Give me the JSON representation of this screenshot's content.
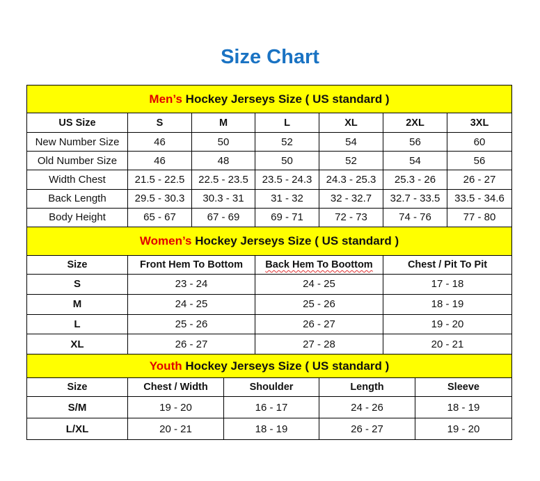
{
  "title": "Size Chart",
  "men": {
    "label_prefix": "Men’s",
    "label_rest": " Hockey Jerseys Size ( US standard )",
    "headers": [
      "US Size",
      "S",
      "M",
      "L",
      "XL",
      "2XL",
      "3XL"
    ],
    "rows": [
      [
        "New Number Size",
        "46",
        "50",
        "52",
        "54",
        "56",
        "60"
      ],
      [
        "Old Number Size",
        "46",
        "48",
        "50",
        "52",
        "54",
        "56"
      ],
      [
        "Width Chest",
        "21.5 - 22.5",
        "22.5 - 23.5",
        "23.5 - 24.3",
        "24.3 - 25.3",
        "25.3 - 26",
        "26 - 27"
      ],
      [
        "Back Length",
        "29.5 - 30.3",
        "30.3 - 31",
        "31 - 32",
        "32 - 32.7",
        "32.7 - 33.5",
        "33.5 - 34.6"
      ],
      [
        "Body Height",
        "65 - 67",
        "67 - 69",
        "69 - 71",
        "72 - 73",
        "74 - 76",
        "77 - 80"
      ]
    ]
  },
  "women": {
    "label_prefix": "Women’s",
    "label_rest": " Hockey Jerseys Size ( US standard )",
    "headers": [
      "Size",
      "Front Hem To Bottom",
      "Back Hem To Boottom",
      "Chest / Pit To Pit"
    ],
    "rows": [
      [
        "S",
        "23 - 24",
        "24 - 25",
        "17 - 18"
      ],
      [
        "M",
        "24 - 25",
        "25 - 26",
        "18 - 19"
      ],
      [
        "L",
        "25 - 26",
        "26 - 27",
        "19 - 20"
      ],
      [
        "XL",
        "26 - 27",
        "27 - 28",
        "20 - 21"
      ]
    ]
  },
  "youth": {
    "label_prefix": "Youth",
    "label_rest": " Hockey Jerseys Size ( US standard )",
    "headers": [
      "Size",
      "Chest / Width",
      "Shoulder",
      "Length",
      "Sleeve"
    ],
    "rows": [
      [
        "S/M",
        "19 - 20",
        "16 - 17",
        "24 - 26",
        "18 - 19"
      ],
      [
        "L/XL",
        "20 - 21",
        "18 - 19",
        "26 - 27",
        "19 - 20"
      ]
    ]
  },
  "colors": {
    "title": "#1a73c3",
    "section_bg": "#ffff00",
    "section_prefix": "#e00000"
  }
}
